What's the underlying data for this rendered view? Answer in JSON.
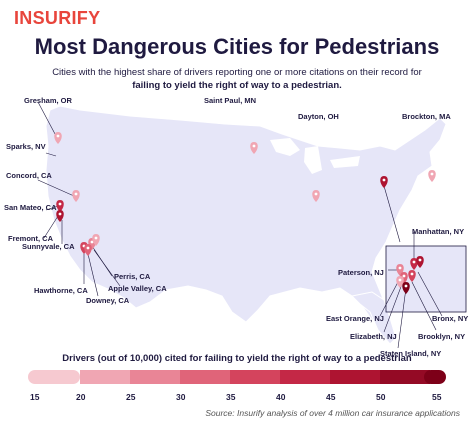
{
  "brand": "insurify",
  "title": "Most Dangerous Cities for Pedestrians",
  "subtitle_line1": "Cities with the highest share of drivers reporting one or more citations on their record for",
  "subtitle_line2": "failing to yield the right of way to a pedestrian.",
  "cities": [
    {
      "label": "Gresham, OR"
    },
    {
      "label": "Saint Paul, MN"
    },
    {
      "label": "Dayton, OH"
    },
    {
      "label": "Brockton, MA"
    },
    {
      "label": "Sparks, NV"
    },
    {
      "label": "Concord, CA"
    },
    {
      "label": "San Mateo, CA"
    },
    {
      "label": "Fremont, CA"
    },
    {
      "label": "Sunnyvale, CA"
    },
    {
      "label": "Perris, CA"
    },
    {
      "label": "Apple Valley, CA"
    },
    {
      "label": "Hawthorne, CA"
    },
    {
      "label": "Downey, CA"
    },
    {
      "label": "Manhattan, NY"
    },
    {
      "label": "Paterson, NJ"
    },
    {
      "label": "East Orange, NJ"
    },
    {
      "label": "Elizabeth, NJ"
    },
    {
      "label": "Bronx, NY"
    },
    {
      "label": "Brooklyn, NY"
    },
    {
      "label": "Staten Island, NY"
    }
  ],
  "legend": {
    "title": "Drivers (out of 10,000) cited for failing to yield the right of way to a pedestrian",
    "ticks": [
      "15",
      "20",
      "25",
      "30",
      "35",
      "40",
      "45",
      "50",
      "55"
    ],
    "colors": [
      "#f6c9d0",
      "#f0a6b3",
      "#e98596",
      "#e06479",
      "#d4445d",
      "#c42846",
      "#ae1431",
      "#940a25",
      "#7d0018"
    ]
  },
  "source": "Source: Insurify analysis of over 4 million car insurance applications"
}
